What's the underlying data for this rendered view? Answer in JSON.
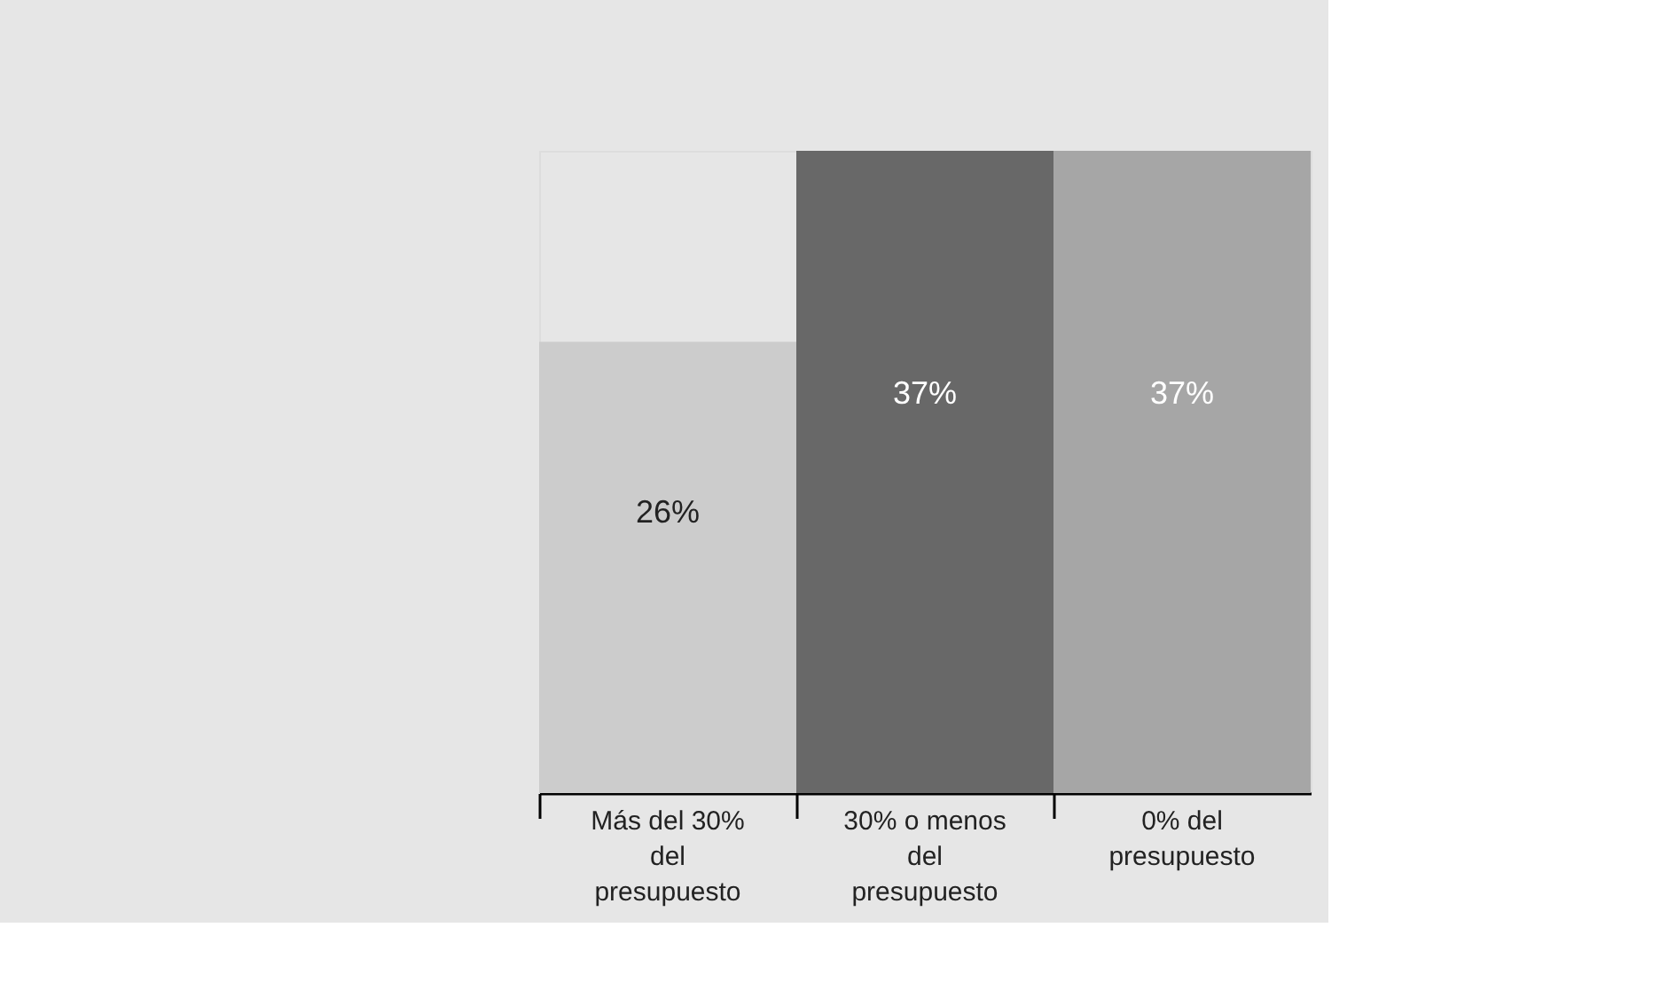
{
  "chart_data": {
    "type": "bar",
    "categories": [
      "Más del 30% del presupuesto",
      "30% o menos del presupuesto",
      "0% del presupuesto"
    ],
    "values": [
      26,
      37,
      37
    ],
    "colors": [
      "#cccccc",
      "#686868",
      "#a6a6a6"
    ],
    "value_labels": [
      "26%",
      "37%",
      "37%"
    ]
  }
}
